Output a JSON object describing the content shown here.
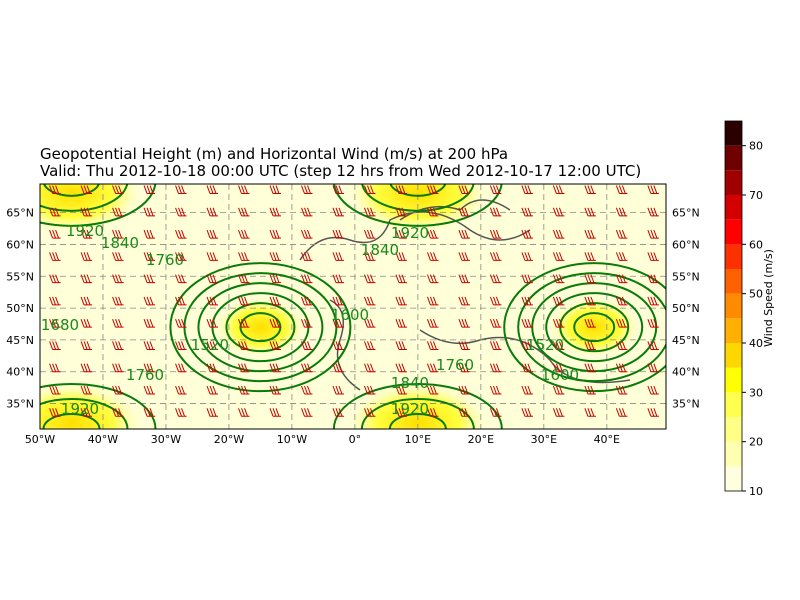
{
  "map": {
    "title": "Geopotential Height (m) and Horizontal Wind (m/s) at 200 hPa",
    "subtitle": "Valid: Thu 2012-10-18 00:00 UTC (step 12 hrs from Wed 2012-10-17 12:00 UTC)",
    "xlim": [
      -50,
      49.4
    ],
    "ylim": [
      31,
      69.5
    ],
    "xticks": [
      {
        "value": -50,
        "label": "50°W"
      },
      {
        "value": -40,
        "label": "40°W"
      },
      {
        "value": -30,
        "label": "30°W"
      },
      {
        "value": -20,
        "label": "20°W"
      },
      {
        "value": -10,
        "label": "10°W"
      },
      {
        "value": 0,
        "label": "0°"
      },
      {
        "value": 10,
        "label": "10°E"
      },
      {
        "value": 20,
        "label": "20°E"
      },
      {
        "value": 30,
        "label": "30°E"
      },
      {
        "value": 40,
        "label": "40°E"
      }
    ],
    "yticks": [
      {
        "value": 35,
        "label": "35°N"
      },
      {
        "value": 40,
        "label": "40°N"
      },
      {
        "value": 45,
        "label": "45°N"
      },
      {
        "value": 50,
        "label": "50°N"
      },
      {
        "value": 55,
        "label": "55°N"
      },
      {
        "value": 60,
        "label": "60°N"
      },
      {
        "value": 65,
        "label": "65°N"
      }
    ],
    "contour_labels": [
      "1920",
      "1840",
      "1760",
      "1680",
      "1600",
      "1520"
    ],
    "colorbar": {
      "label": "Wind Speed (m/s)",
      "lim": [
        10,
        85
      ],
      "ticks": [
        10,
        20,
        30,
        40,
        50,
        60,
        70,
        80
      ],
      "bounds": [
        10,
        15,
        20,
        25,
        30,
        35,
        40,
        45,
        50,
        55,
        60,
        65,
        70,
        75,
        80,
        85
      ],
      "colors": [
        "#ffffe0",
        "#ffffb2",
        "#ffff85",
        "#ffff4d",
        "#ffff00",
        "#ffd700",
        "#ffb000",
        "#ff8c00",
        "#ff6000",
        "#ff3000",
        "#ff0000",
        "#d40000",
        "#a00000",
        "#6e0000",
        "#2a0000"
      ]
    }
  }
}
